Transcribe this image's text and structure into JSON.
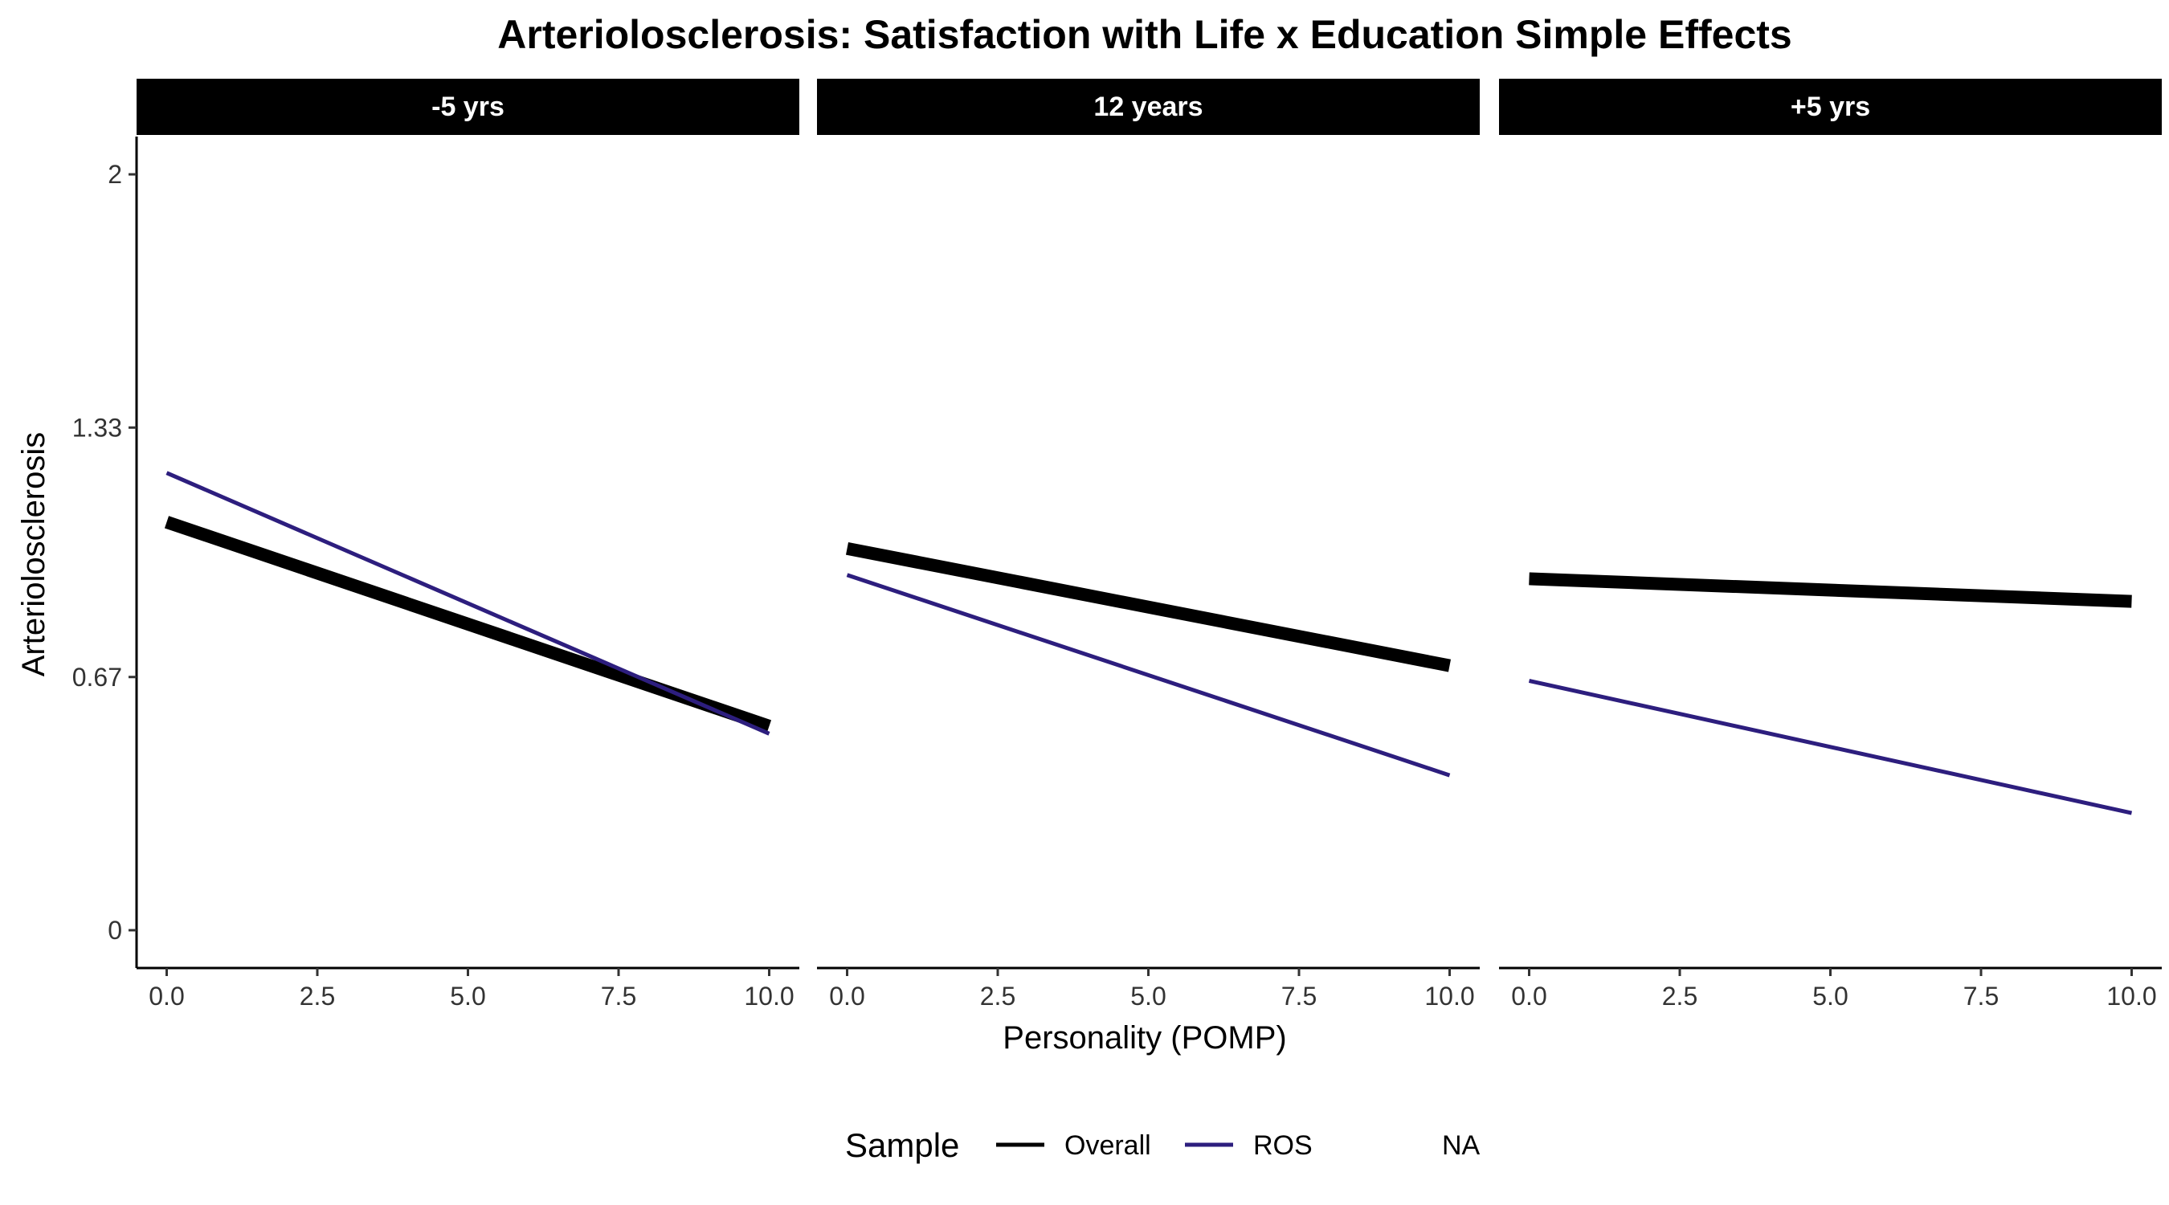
{
  "chart_data": {
    "type": "line",
    "title": "Arteriolosclerosis: Satisfaction with Life x Education Simple Effects",
    "xlabel": "Personality (POMP)",
    "ylabel": "Arteriolosclerosis",
    "xlim": [
      -0.5,
      10.5
    ],
    "ylim": [
      -0.1,
      2.1
    ],
    "x_ticks": [
      0,
      2.5,
      5,
      7.5,
      10
    ],
    "x_tick_labels": [
      "0.0",
      "2.5",
      "5.0",
      "7.5",
      "10.0"
    ],
    "y_ticks": [
      0,
      0.67,
      1.33,
      2
    ],
    "y_tick_labels": [
      "0",
      "0.67",
      "1.33",
      "2"
    ],
    "grid": false,
    "legend": {
      "title": "Sample",
      "position": "bottom",
      "entries": [
        {
          "label": "Overall",
          "color": "#000000"
        },
        {
          "label": "ROS",
          "color": "#2d1e7e"
        },
        {
          "label": "NA",
          "color": "#ffffff"
        }
      ]
    },
    "panels": [
      {
        "label": "-5 yrs",
        "series": [
          {
            "name": "Overall",
            "color": "#000000",
            "x": [
              0,
              10
            ],
            "y": [
              1.08,
              0.54
            ]
          },
          {
            "name": "ROS",
            "color": "#2d1e7e",
            "x": [
              0,
              10
            ],
            "y": [
              1.21,
              0.52
            ]
          }
        ]
      },
      {
        "label": "12 years",
        "series": [
          {
            "name": "Overall",
            "color": "#000000",
            "x": [
              0,
              10
            ],
            "y": [
              1.01,
              0.7
            ]
          },
          {
            "name": "ROS",
            "color": "#2d1e7e",
            "x": [
              0,
              10
            ],
            "y": [
              0.94,
              0.41
            ]
          }
        ]
      },
      {
        "label": "+5 yrs",
        "series": [
          {
            "name": "Overall",
            "color": "#000000",
            "x": [
              0,
              10
            ],
            "y": [
              0.93,
              0.87
            ]
          },
          {
            "name": "ROS",
            "color": "#2d1e7e",
            "x": [
              0,
              10
            ],
            "y": [
              0.66,
              0.31
            ]
          }
        ]
      }
    ]
  }
}
